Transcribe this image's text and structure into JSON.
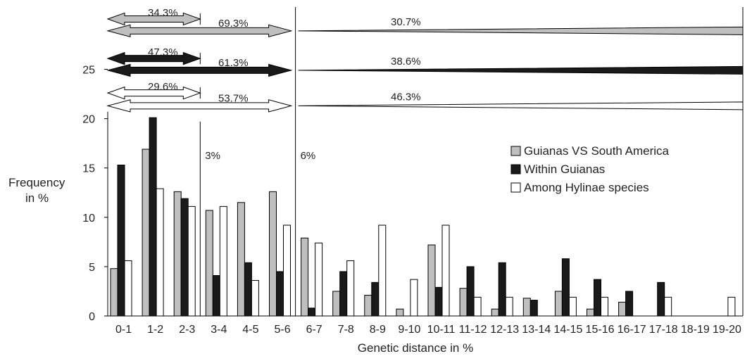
{
  "chart_data": {
    "type": "bar",
    "xlabel": "Genetic distance in %",
    "ylabel_line1": "Frequency",
    "ylabel_line2": "in %",
    "ylim": [
      0,
      30
    ],
    "yticks": [
      0,
      5,
      10,
      15,
      20,
      25
    ],
    "categories": [
      "0-1",
      "1-2",
      "2-3",
      "3-4",
      "4-5",
      "5-6",
      "6-7",
      "7-8",
      "8-9",
      "9-10",
      "10-11",
      "11-12",
      "12-13",
      "13-14",
      "14-15",
      "15-16",
      "16-17",
      "17-18",
      "18-19",
      "19-20"
    ],
    "series": [
      {
        "name": "Guianas VS South America",
        "color": "#bfbfbf",
        "values": [
          4.8,
          16.9,
          12.6,
          10.7,
          11.5,
          12.6,
          7.9,
          2.5,
          2.1,
          0.7,
          7.2,
          2.8,
          0.7,
          1.8,
          2.5,
          0.7,
          1.4,
          0,
          0,
          0
        ]
      },
      {
        "name": "Within Guianas",
        "color": "#1a1a1a",
        "values": [
          15.3,
          20.1,
          11.9,
          4.1,
          5.4,
          4.5,
          0.8,
          4.5,
          3.4,
          0,
          2.9,
          5.0,
          5.4,
          1.6,
          5.8,
          3.7,
          2.5,
          3.4,
          0,
          0
        ]
      },
      {
        "name": "Among Hylinae species",
        "color": "#ffffff",
        "values": [
          5.6,
          12.9,
          11.1,
          11.1,
          3.6,
          9.2,
          7.4,
          5.6,
          9.2,
          3.7,
          9.2,
          1.9,
          1.9,
          0,
          1.9,
          1.9,
          0,
          1.9,
          0,
          1.9
        ]
      }
    ],
    "thresholds": [
      {
        "label": "3%",
        "after_category": 2
      },
      {
        "label": "6%",
        "after_category": 5
      }
    ],
    "arrows": [
      {
        "series": "Guianas VS South America",
        "color": "#bfbfbf",
        "y": 28.9,
        "short_y": 30.1,
        "below3": "34.3%",
        "below6": "69.3%",
        "above6": "30.7%"
      },
      {
        "series": "Within Guianas",
        "color": "#1a1a1a",
        "y": 24.9,
        "short_y": 26.1,
        "below3": "47.3%",
        "below6": "61.3%",
        "above6": "38.6%"
      },
      {
        "series": "Among Hylinae species",
        "color": "#ffffff",
        "y": 21.3,
        "short_y": 22.6,
        "below3": "29.6%",
        "below6": "53.7%",
        "above6": "46.3%"
      }
    ],
    "legend": {
      "position": "right"
    }
  }
}
